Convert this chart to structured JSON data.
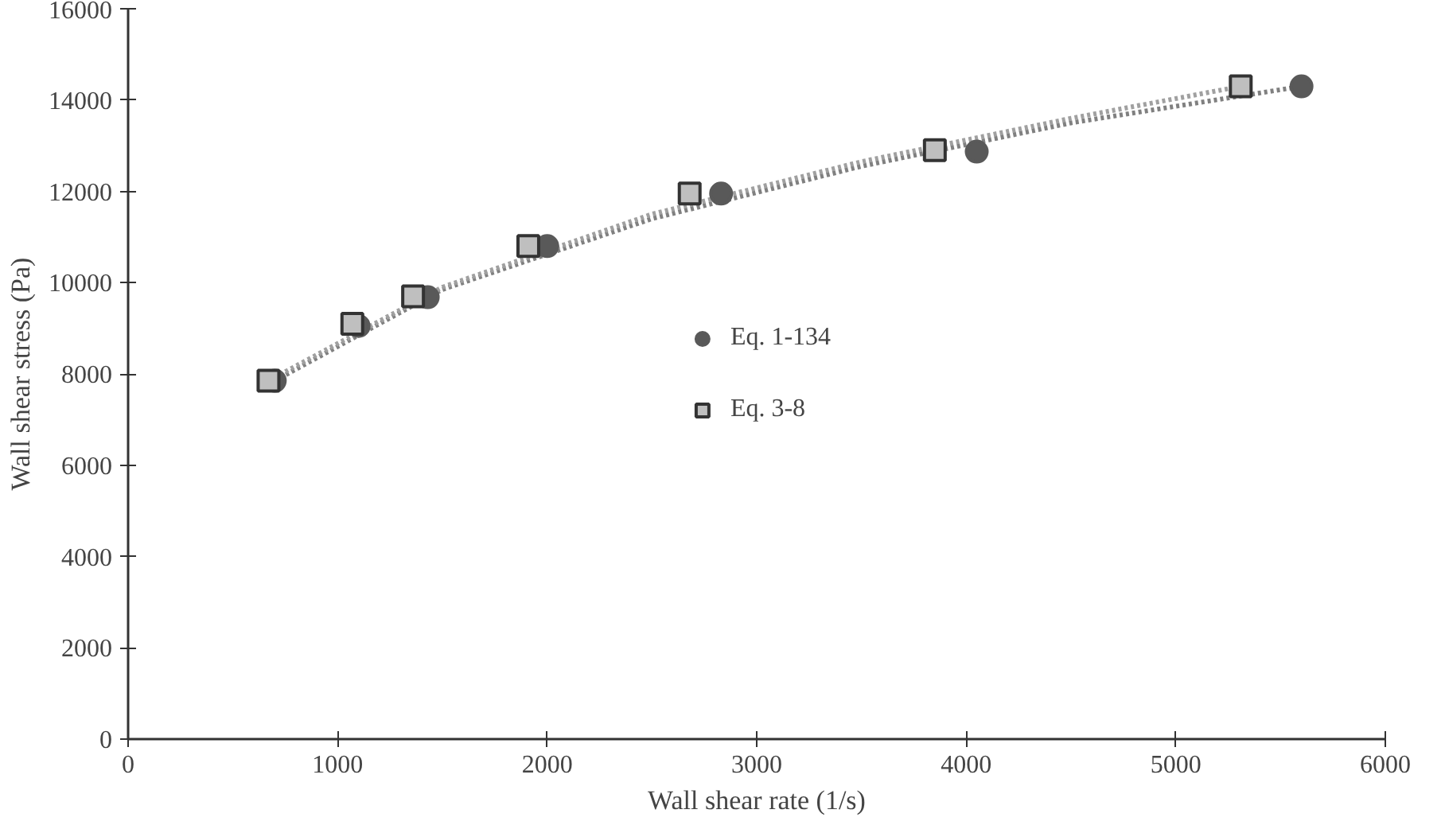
{
  "chart_data": {
    "type": "scatter",
    "xlabel": "Wall shear rate (1/s)",
    "ylabel": "Wall shear stress (Pa)",
    "xlim": [
      0,
      6000
    ],
    "xticks": [
      0,
      1000,
      2000,
      3000,
      4000,
      5000,
      6000
    ],
    "ylim": [
      0,
      16000
    ],
    "yticks": [
      0,
      2000,
      4000,
      6000,
      8000,
      10000,
      12000,
      14000,
      16000
    ],
    "grid": false,
    "legend": "center",
    "series": [
      {
        "name": "Eq. 1-134",
        "marker": "circle",
        "color": "#595959",
        "x": [
          700,
          1100,
          1430,
          2000,
          2830,
          4050,
          5600
        ],
        "values": [
          7850,
          9050,
          9680,
          10800,
          11950,
          12870,
          14300
        ]
      },
      {
        "name": "Eq. 3-8",
        "marker": "square",
        "color": "#bfbfbf",
        "x": [
          670,
          1070,
          1360,
          1910,
          2680,
          3850,
          5310
        ],
        "values": [
          7850,
          9100,
          9700,
          10800,
          11950,
          12900,
          14300
        ]
      },
      {
        "type": "line",
        "line_style": "dotted",
        "color": "#808080",
        "x": [
          700,
          1500,
          2500,
          3500,
          4500,
          5600
        ],
        "values": [
          7850,
          9850,
          11400,
          12550,
          13500,
          14300
        ]
      },
      {
        "type": "line",
        "line_style": "dotted",
        "color": "#a0a0a0",
        "x": [
          670,
          1500,
          2500,
          3500,
          4500,
          5310
        ],
        "values": [
          7850,
          9900,
          11500,
          12650,
          13600,
          14300
        ]
      }
    ]
  }
}
